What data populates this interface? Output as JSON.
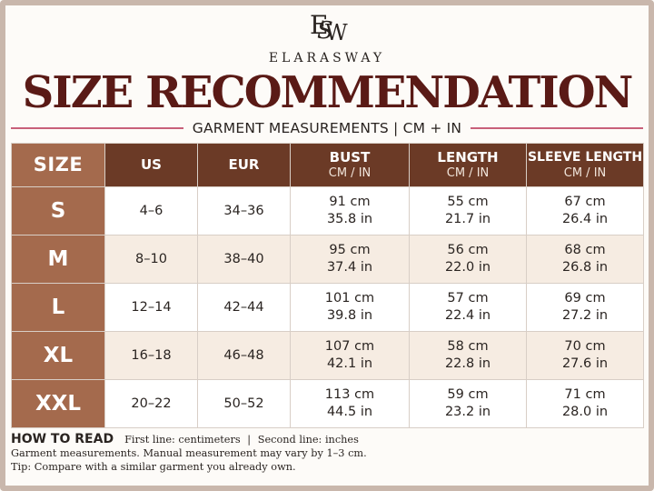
{
  "brand": {
    "monogram": [
      "E",
      "S",
      "W"
    ],
    "name": "ELARASWAY"
  },
  "title": "SIZE RECOMMENDATION",
  "subtitle": "GARMENT MEASUREMENTS | CM + IN",
  "table": {
    "headers": {
      "size": "SIZE",
      "us": "US",
      "eur": "EUR",
      "bust": "BUST",
      "bust_unit": "CM / IN",
      "length": "LENGTH",
      "length_unit": "CM / IN",
      "sleeve": "SLEEVE LENGTH",
      "sleeve_unit": "CM / IN"
    },
    "rows": [
      {
        "size": "S",
        "us": "4–6",
        "eur": "34–36",
        "bust_cm": "91 cm",
        "bust_in": "35.8 in",
        "length_cm": "55 cm",
        "length_in": "21.7 in",
        "sleeve_cm": "67 cm",
        "sleeve_in": "26.4 in"
      },
      {
        "size": "M",
        "us": "8–10",
        "eur": "38–40",
        "bust_cm": "95 cm",
        "bust_in": "37.4 in",
        "length_cm": "56 cm",
        "length_in": "22.0 in",
        "sleeve_cm": "68 cm",
        "sleeve_in": "26.8 in"
      },
      {
        "size": "L",
        "us": "12–14",
        "eur": "42–44",
        "bust_cm": "101 cm",
        "bust_in": "39.8 in",
        "length_cm": "57 cm",
        "length_in": "22.4 in",
        "sleeve_cm": "69 cm",
        "sleeve_in": "27.2 in"
      },
      {
        "size": "XL",
        "us": "16–18",
        "eur": "46–48",
        "bust_cm": "107 cm",
        "bust_in": "42.1 in",
        "length_cm": "58 cm",
        "length_in": "22.8 in",
        "sleeve_cm": "70 cm",
        "sleeve_in": "27.6 in"
      },
      {
        "size": "XXL",
        "us": "20–22",
        "eur": "50–52",
        "bust_cm": "113 cm",
        "bust_in": "44.5 in",
        "length_cm": "59 cm",
        "length_in": "23.2 in",
        "sleeve_cm": "71 cm",
        "sleeve_in": "28.0 in"
      }
    ]
  },
  "notes": {
    "how_to_read": "HOW TO READ",
    "first_line": "First line: centimeters",
    "separator": "|",
    "second_line": "Second line: inches",
    "measurement_note": "Garment measurements. Manual measurement may vary by 1–3 cm.",
    "tip": "Tip: Compare with a similar garment you already own."
  },
  "colors": {
    "title": "#5a1a16",
    "header": "#6b3a26",
    "size_column": "#a46a4d",
    "alt_row": "#f6ece2",
    "accent_rule": "#c8607a",
    "frame": "#c9b7ac"
  }
}
